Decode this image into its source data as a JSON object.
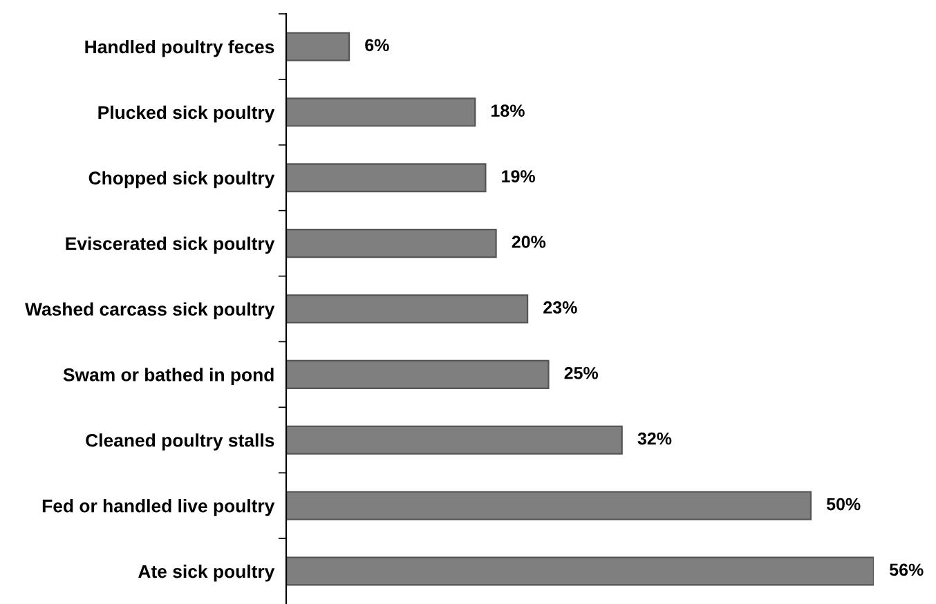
{
  "chart_data": {
    "type": "bar",
    "orientation": "horizontal",
    "categories": [
      "Handled poultry feces",
      "Plucked sick poultry",
      "Chopped sick poultry",
      "Eviscerated sick poultry",
      "Washed carcass sick poultry",
      "Swam or bathed in pond",
      "Cleaned poultry stalls",
      "Fed or handled live poultry",
      "Ate sick poultry"
    ],
    "values": [
      6,
      18,
      19,
      20,
      23,
      25,
      32,
      50,
      56
    ],
    "value_labels": [
      "6%",
      "18%",
      "19%",
      "20%",
      "23%",
      "25%",
      "32%",
      "50%",
      "56%"
    ],
    "color": "#7f7f7f",
    "grid": false,
    "legend": false
  }
}
